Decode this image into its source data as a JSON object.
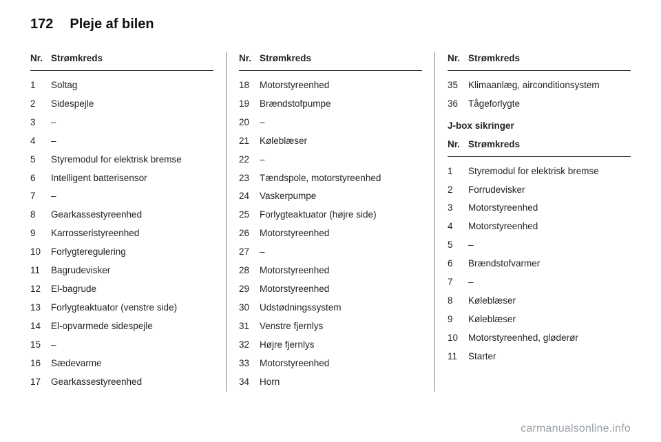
{
  "page": {
    "number": "172",
    "title": "Pleje af bilen"
  },
  "table_header": {
    "num": "Nr.",
    "label": "Strømkreds"
  },
  "col1": [
    {
      "n": "1",
      "l": "Soltag"
    },
    {
      "n": "2",
      "l": "Sidespejle"
    },
    {
      "n": "3",
      "l": "–"
    },
    {
      "n": "4",
      "l": "–"
    },
    {
      "n": "5",
      "l": "Styremodul for elektrisk bremse"
    },
    {
      "n": "6",
      "l": "Intelligent batterisensor"
    },
    {
      "n": "7",
      "l": "–"
    },
    {
      "n": "8",
      "l": "Gearkassestyreenhed"
    },
    {
      "n": "9",
      "l": "Karrosseristyreenhed"
    },
    {
      "n": "10",
      "l": "Forlygteregulering"
    },
    {
      "n": "11",
      "l": "Bagrudevisker"
    },
    {
      "n": "12",
      "l": "El-bagrude"
    },
    {
      "n": "13",
      "l": "Forlygteaktuator (venstre side)"
    },
    {
      "n": "14",
      "l": "El-opvarmede sidespejle"
    },
    {
      "n": "15",
      "l": "–"
    },
    {
      "n": "16",
      "l": "Sædevarme"
    },
    {
      "n": "17",
      "l": "Gearkassestyreenhed"
    }
  ],
  "col2": [
    {
      "n": "18",
      "l": "Motorstyreenhed"
    },
    {
      "n": "19",
      "l": "Brændstofpumpe"
    },
    {
      "n": "20",
      "l": "–"
    },
    {
      "n": "21",
      "l": "Køleblæser"
    },
    {
      "n": "22",
      "l": "–"
    },
    {
      "n": "23",
      "l": "Tændspole, motorstyreenhed"
    },
    {
      "n": "24",
      "l": "Vaskerpumpe"
    },
    {
      "n": "25",
      "l": "Forlygteaktuator (højre side)"
    },
    {
      "n": "26",
      "l": "Motorstyreenhed"
    },
    {
      "n": "27",
      "l": "–"
    },
    {
      "n": "28",
      "l": "Motorstyreenhed"
    },
    {
      "n": "29",
      "l": "Motorstyreenhed"
    },
    {
      "n": "30",
      "l": "Udstødningssystem"
    },
    {
      "n": "31",
      "l": "Venstre fjernlys"
    },
    {
      "n": "32",
      "l": "Højre fjernlys"
    },
    {
      "n": "33",
      "l": "Motorstyreenhed"
    },
    {
      "n": "34",
      "l": "Horn"
    }
  ],
  "col3_top": [
    {
      "n": "35",
      "l": "Klimaanlæg, airconditionsystem"
    },
    {
      "n": "36",
      "l": "Tågeforlygte"
    }
  ],
  "col3_subhead": "J-box sikringer",
  "col3_bottom": [
    {
      "n": "1",
      "l": "Styremodul for elektrisk bremse"
    },
    {
      "n": "2",
      "l": "Forrudevisker"
    },
    {
      "n": "3",
      "l": "Motorstyreenhed"
    },
    {
      "n": "4",
      "l": "Motorstyreenhed"
    },
    {
      "n": "5",
      "l": "–"
    },
    {
      "n": "6",
      "l": "Brændstofvarmer"
    },
    {
      "n": "7",
      "l": "–"
    },
    {
      "n": "8",
      "l": "Køleblæser"
    },
    {
      "n": "9",
      "l": "Køleblæser"
    },
    {
      "n": "10",
      "l": "Motorstyreenhed, gløderør"
    },
    {
      "n": "11",
      "l": "Starter"
    }
  ],
  "footer": "carmanualsonline.info"
}
